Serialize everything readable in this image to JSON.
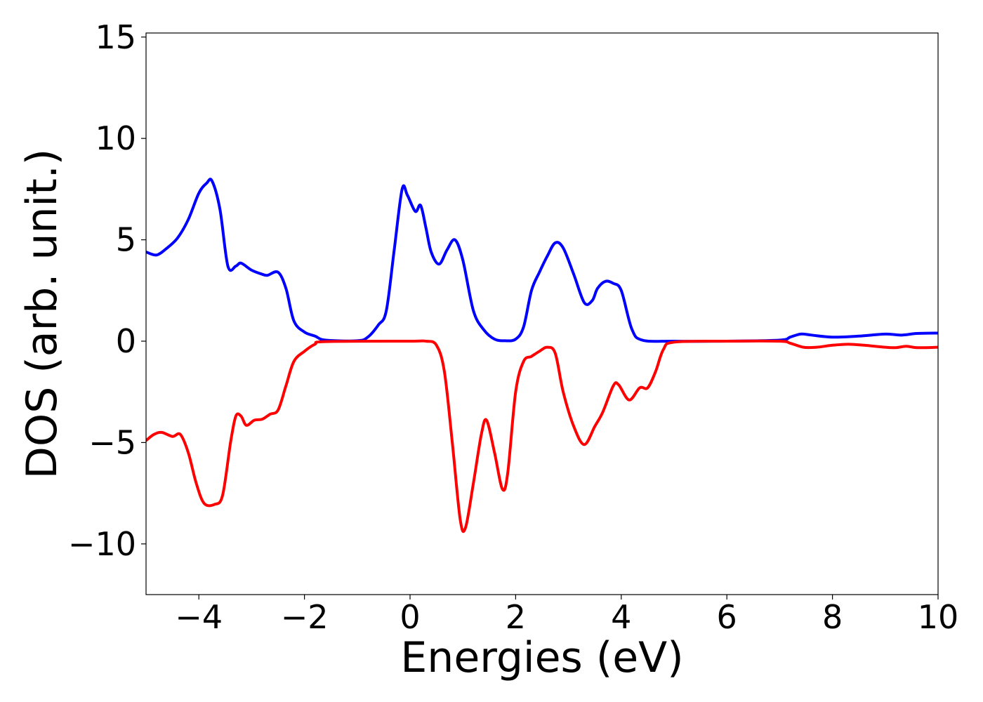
{
  "chart_data": {
    "type": "line",
    "title": "",
    "xlabel": "Energies (eV)",
    "ylabel": "DOS (arb. unit.)",
    "xlim": [
      -5,
      10
    ],
    "ylim": [
      -12.5,
      15.2
    ],
    "grid": false,
    "x_ticks": [
      -4,
      -2,
      0,
      2,
      4,
      6,
      8,
      10
    ],
    "x_tick_labels": [
      "−4",
      "−2",
      "0",
      "2",
      "4",
      "6",
      "8",
      "10"
    ],
    "y_ticks": [
      -10,
      -5,
      0,
      5,
      10,
      15
    ],
    "y_tick_labels": [
      "−10",
      "−5",
      "0",
      "5",
      "10",
      "15"
    ],
    "series": [
      {
        "color": "#0000ff",
        "points": [
          [
            -5.0,
            4.4
          ],
          [
            -4.8,
            4.25
          ],
          [
            -4.6,
            4.6
          ],
          [
            -4.4,
            5.1
          ],
          [
            -4.2,
            6.0
          ],
          [
            -4.0,
            7.3
          ],
          [
            -3.85,
            7.8
          ],
          [
            -3.75,
            7.9
          ],
          [
            -3.6,
            6.5
          ],
          [
            -3.45,
            3.7
          ],
          [
            -3.3,
            3.7
          ],
          [
            -3.2,
            3.85
          ],
          [
            -3.0,
            3.5
          ],
          [
            -2.8,
            3.3
          ],
          [
            -2.7,
            3.25
          ],
          [
            -2.5,
            3.4
          ],
          [
            -2.35,
            2.6
          ],
          [
            -2.2,
            1.0
          ],
          [
            -2.0,
            0.45
          ],
          [
            -1.8,
            0.25
          ],
          [
            -1.6,
            0.05
          ],
          [
            -1.0,
            0.02
          ],
          [
            -0.8,
            0.2
          ],
          [
            -0.6,
            0.8
          ],
          [
            -0.45,
            1.5
          ],
          [
            -0.3,
            4.5
          ],
          [
            -0.15,
            7.5
          ],
          [
            -0.05,
            7.2
          ],
          [
            0.1,
            6.4
          ],
          [
            0.2,
            6.7
          ],
          [
            0.3,
            5.6
          ],
          [
            0.4,
            4.4
          ],
          [
            0.55,
            3.8
          ],
          [
            0.7,
            4.5
          ],
          [
            0.85,
            5.0
          ],
          [
            1.0,
            4.0
          ],
          [
            1.2,
            1.5
          ],
          [
            1.4,
            0.55
          ],
          [
            1.6,
            0.1
          ],
          [
            1.8,
            0.02
          ],
          [
            2.0,
            0.1
          ],
          [
            2.15,
            0.7
          ],
          [
            2.3,
            2.5
          ],
          [
            2.45,
            3.4
          ],
          [
            2.6,
            4.2
          ],
          [
            2.75,
            4.85
          ],
          [
            2.9,
            4.6
          ],
          [
            3.1,
            3.3
          ],
          [
            3.3,
            1.9
          ],
          [
            3.45,
            2.0
          ],
          [
            3.55,
            2.6
          ],
          [
            3.7,
            2.95
          ],
          [
            3.85,
            2.85
          ],
          [
            4.0,
            2.5
          ],
          [
            4.2,
            0.6
          ],
          [
            4.4,
            0.05
          ],
          [
            5.0,
            0.0
          ],
          [
            6.0,
            0.0
          ],
          [
            7.0,
            0.05
          ],
          [
            7.2,
            0.2
          ],
          [
            7.4,
            0.35
          ],
          [
            7.6,
            0.3
          ],
          [
            8.0,
            0.2
          ],
          [
            8.5,
            0.25
          ],
          [
            9.0,
            0.35
          ],
          [
            9.3,
            0.3
          ],
          [
            9.6,
            0.38
          ],
          [
            10.0,
            0.4
          ]
        ]
      },
      {
        "color": "#ff0000",
        "points": [
          [
            -5.0,
            -4.9
          ],
          [
            -4.85,
            -4.6
          ],
          [
            -4.7,
            -4.5
          ],
          [
            -4.5,
            -4.7
          ],
          [
            -4.35,
            -4.6
          ],
          [
            -4.2,
            -5.5
          ],
          [
            -4.05,
            -7.0
          ],
          [
            -3.9,
            -8.0
          ],
          [
            -3.7,
            -8.05
          ],
          [
            -3.55,
            -7.6
          ],
          [
            -3.4,
            -5.0
          ],
          [
            -3.3,
            -3.7
          ],
          [
            -3.2,
            -3.7
          ],
          [
            -3.1,
            -4.15
          ],
          [
            -2.95,
            -3.9
          ],
          [
            -2.8,
            -3.85
          ],
          [
            -2.65,
            -3.6
          ],
          [
            -2.5,
            -3.4
          ],
          [
            -2.35,
            -2.2
          ],
          [
            -2.2,
            -1.0
          ],
          [
            -2.0,
            -0.5
          ],
          [
            -1.8,
            -0.15
          ],
          [
            -1.6,
            -0.02
          ],
          [
            0.0,
            0.0
          ],
          [
            0.3,
            0.0
          ],
          [
            0.5,
            -0.2
          ],
          [
            0.65,
            -1.5
          ],
          [
            0.8,
            -5.0
          ],
          [
            0.95,
            -8.8
          ],
          [
            1.05,
            -9.2
          ],
          [
            1.2,
            -7.0
          ],
          [
            1.35,
            -4.6
          ],
          [
            1.45,
            -3.9
          ],
          [
            1.6,
            -5.5
          ],
          [
            1.75,
            -7.3
          ],
          [
            1.85,
            -6.5
          ],
          [
            2.0,
            -2.5
          ],
          [
            2.15,
            -1.0
          ],
          [
            2.3,
            -0.75
          ],
          [
            2.45,
            -0.5
          ],
          [
            2.6,
            -0.3
          ],
          [
            2.75,
            -0.6
          ],
          [
            2.9,
            -2.5
          ],
          [
            3.1,
            -4.2
          ],
          [
            3.3,
            -5.1
          ],
          [
            3.5,
            -4.2
          ],
          [
            3.65,
            -3.5
          ],
          [
            3.85,
            -2.2
          ],
          [
            3.95,
            -2.15
          ],
          [
            4.15,
            -2.9
          ],
          [
            4.35,
            -2.3
          ],
          [
            4.5,
            -2.3
          ],
          [
            4.65,
            -1.5
          ],
          [
            4.8,
            -0.4
          ],
          [
            5.0,
            -0.05
          ],
          [
            6.0,
            0.0
          ],
          [
            7.0,
            0.0
          ],
          [
            7.2,
            -0.1
          ],
          [
            7.45,
            -0.3
          ],
          [
            7.7,
            -0.3
          ],
          [
            8.0,
            -0.2
          ],
          [
            8.3,
            -0.15
          ],
          [
            8.6,
            -0.2
          ],
          [
            9.0,
            -0.3
          ],
          [
            9.2,
            -0.32
          ],
          [
            9.4,
            -0.25
          ],
          [
            9.6,
            -0.32
          ],
          [
            10.0,
            -0.3
          ]
        ]
      }
    ]
  }
}
